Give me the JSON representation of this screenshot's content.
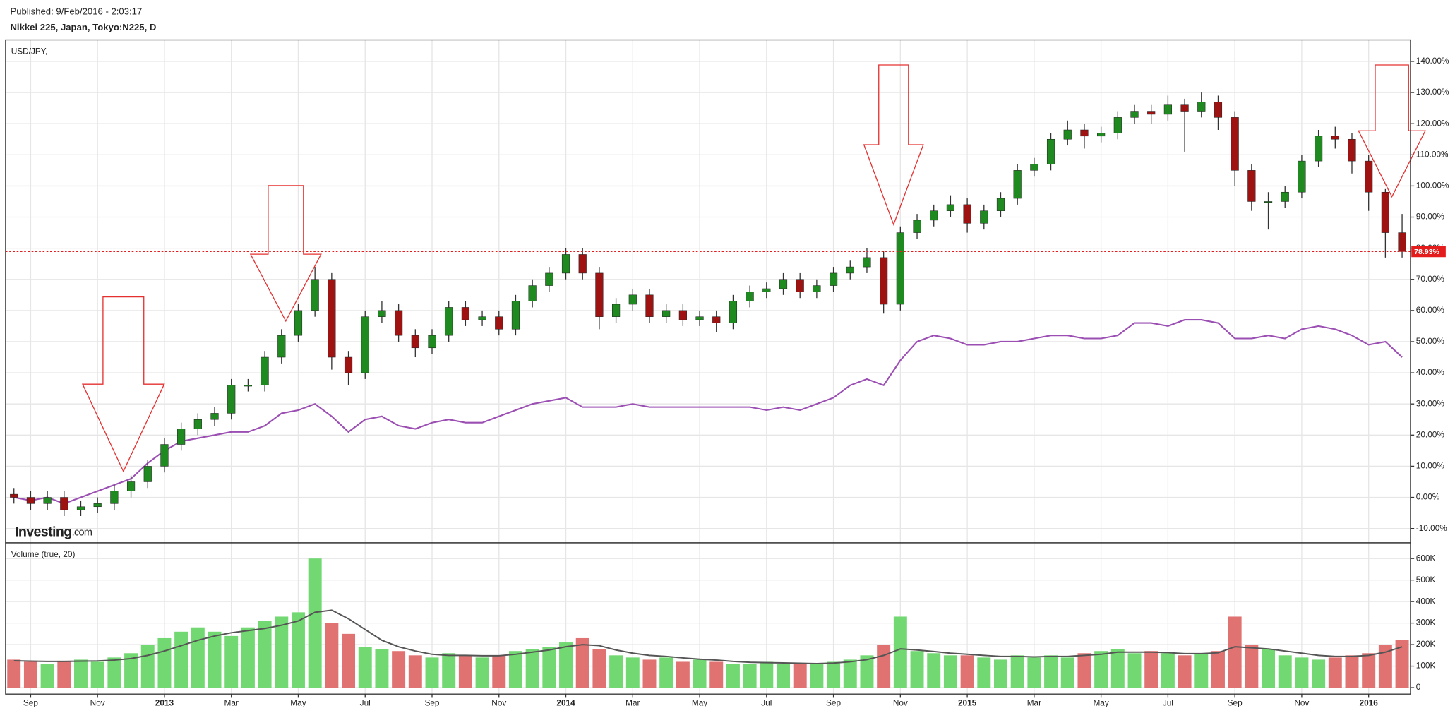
{
  "published": "Published: 9/Feb/2016 - 2:03:17",
  "instrument": "Nikkei 225, Japan, Tokyo:N225, D",
  "logo_main": "Investing",
  "logo_suffix": ".com",
  "chart_data": [
    {
      "type": "candlestick",
      "categories": [
        null,
        "Sep",
        null,
        null,
        null,
        "Nov",
        null,
        null,
        null,
        "2013",
        null,
        null,
        null,
        "Mar",
        null,
        null,
        null,
        "May",
        null,
        null,
        null,
        "Jul",
        null,
        null,
        null,
        "Sep",
        null,
        null,
        null,
        "Nov",
        null,
        null,
        null,
        "2014",
        null,
        null,
        null,
        "Mar",
        null,
        null,
        null,
        "May",
        null,
        null,
        null,
        "Jul",
        null,
        null,
        null,
        "Sep",
        null,
        null,
        null,
        "Nov",
        null,
        null,
        null,
        "2015",
        null,
        null,
        null,
        "Mar",
        null,
        null,
        null,
        "May",
        null,
        null,
        null,
        "Jul",
        null,
        null,
        null,
        "Sep",
        null,
        null,
        null,
        "Nov",
        null,
        null,
        null,
        "2016",
        null,
        null
      ],
      "open": [
        1,
        0,
        -2,
        0,
        -4,
        -3,
        -2,
        2,
        5,
        10,
        17,
        22,
        25,
        27,
        36,
        36,
        45,
        52,
        60,
        70,
        45,
        40,
        58,
        60,
        52,
        48,
        52,
        61,
        57,
        58,
        54,
        63,
        68,
        72,
        78,
        72,
        58,
        62,
        65,
        58,
        60,
        57,
        58,
        56,
        63,
        66,
        67,
        70,
        66,
        68,
        72,
        74,
        77,
        62,
        85,
        89,
        92,
        94,
        88,
        92,
        96,
        105,
        107,
        115,
        118,
        116,
        117,
        122,
        124,
        123,
        126,
        124,
        127,
        122,
        105,
        95,
        95,
        98,
        108,
        116,
        115,
        108,
        98,
        85
      ],
      "high": [
        3,
        2,
        2,
        2,
        -1,
        0,
        4,
        7,
        12,
        19,
        24,
        27,
        29,
        38,
        38,
        47,
        54,
        62,
        74,
        72,
        47,
        60,
        63,
        62,
        54,
        54,
        63,
        63,
        60,
        60,
        65,
        70,
        74,
        80,
        80,
        74,
        64,
        67,
        67,
        62,
        62,
        60,
        60,
        65,
        68,
        69,
        72,
        72,
        70,
        74,
        76,
        80,
        79,
        87,
        91,
        94,
        97,
        96,
        94,
        98,
        107,
        109,
        117,
        121,
        120,
        119,
        124,
        126,
        126,
        129,
        128,
        130,
        129,
        124,
        107,
        98,
        100,
        110,
        118,
        119,
        117,
        110,
        99,
        91
      ],
      "low": [
        -2,
        -4,
        -4,
        -6,
        -6,
        -5,
        -4,
        0,
        3,
        8,
        15,
        20,
        23,
        25,
        34,
        34,
        43,
        50,
        58,
        41,
        36,
        38,
        56,
        50,
        45,
        46,
        50,
        55,
        55,
        52,
        52,
        61,
        66,
        70,
        70,
        54,
        56,
        60,
        56,
        56,
        55,
        55,
        53,
        54,
        61,
        64,
        65,
        64,
        64,
        66,
        70,
        72,
        59,
        60,
        83,
        87,
        90,
        85,
        86,
        90,
        94,
        103,
        105,
        113,
        112,
        114,
        115,
        120,
        120,
        121,
        111,
        122,
        118,
        100,
        92,
        86,
        93,
        96,
        106,
        112,
        104,
        92,
        77,
        77
      ],
      "close": [
        0,
        -2,
        0,
        -4,
        -3,
        -2,
        2,
        5,
        10,
        17,
        22,
        25,
        27,
        36,
        36,
        45,
        52,
        60,
        70,
        45,
        40,
        58,
        60,
        52,
        48,
        52,
        61,
        57,
        58,
        54,
        63,
        68,
        72,
        78,
        72,
        58,
        62,
        65,
        58,
        60,
        57,
        58,
        56,
        63,
        66,
        67,
        70,
        66,
        68,
        72,
        74,
        77,
        62,
        85,
        89,
        92,
        94,
        88,
        92,
        96,
        105,
        107,
        115,
        118,
        116,
        117,
        122,
        124,
        123,
        126,
        124,
        127,
        122,
        105,
        95,
        95,
        98,
        108,
        116,
        115,
        108,
        98,
        85,
        78.93
      ],
      "up_color": "#1f8a1f",
      "down_color": "#9e1212",
      "wick_color": "#333",
      "last_label": "78.93%",
      "last_color": "#e51c1c",
      "series": [
        {
          "name": "USD/JPY,",
          "type": "line",
          "color": "#9b4fb3",
          "values": [
            0,
            -1,
            0,
            -2,
            0,
            2,
            4,
            6,
            11,
            15,
            18,
            19,
            20,
            21,
            21,
            23,
            27,
            28,
            30,
            26,
            21,
            25,
            26,
            23,
            22,
            24,
            25,
            24,
            24,
            26,
            28,
            30,
            31,
            32,
            29,
            29,
            29,
            30,
            29,
            29,
            29,
            29,
            29,
            29,
            29,
            28,
            29,
            28,
            30,
            32,
            36,
            38,
            36,
            44,
            50,
            52,
            51,
            49,
            49,
            50,
            50,
            51,
            52,
            52,
            51,
            51,
            52,
            56,
            56,
            55,
            57,
            57,
            56,
            51,
            51,
            52,
            51,
            54,
            55,
            54,
            52,
            49,
            50,
            45
          ]
        }
      ],
      "ylim": [
        -14.6,
        146.9
      ],
      "yticks": [
        {
          "value": -10,
          "label": "-10.00%"
        },
        {
          "value": 0,
          "label": "0.00%"
        },
        {
          "value": 10,
          "label": "10.00%"
        },
        {
          "value": 20,
          "label": "20.00%"
        },
        {
          "value": 30,
          "label": "30.00%"
        },
        {
          "value": 40,
          "label": "40.00%"
        },
        {
          "value": 50,
          "label": "50.00%"
        },
        {
          "value": 60,
          "label": "60.00%"
        },
        {
          "value": 70,
          "label": "70.00%"
        },
        {
          "value": 80,
          "label": "80.00%"
        },
        {
          "value": 90,
          "label": "90.00%"
        },
        {
          "value": 100,
          "label": "100.00%"
        },
        {
          "value": 110,
          "label": "110.00%"
        },
        {
          "value": 120,
          "label": "120.00%"
        },
        {
          "value": 130,
          "label": "130.00%"
        },
        {
          "value": 140,
          "label": "140.00%"
        }
      ],
      "grid": true
    },
    {
      "type": "bar",
      "title": "Volume (true, 20)",
      "values": [
        130000,
        120000,
        110000,
        125000,
        130000,
        120000,
        140000,
        160000,
        200000,
        230000,
        260000,
        280000,
        260000,
        240000,
        280000,
        310000,
        330000,
        350000,
        600000,
        300000,
        250000,
        190000,
        180000,
        170000,
        150000,
        140000,
        160000,
        150000,
        140000,
        150000,
        170000,
        180000,
        190000,
        210000,
        230000,
        180000,
        150000,
        140000,
        130000,
        140000,
        120000,
        130000,
        120000,
        110000,
        110000,
        120000,
        110000,
        110000,
        110000,
        120000,
        130000,
        150000,
        200000,
        330000,
        170000,
        160000,
        150000,
        150000,
        140000,
        130000,
        150000,
        140000,
        150000,
        140000,
        160000,
        170000,
        180000,
        160000,
        170000,
        160000,
        150000,
        160000,
        170000,
        330000,
        200000,
        180000,
        150000,
        140000,
        130000,
        140000,
        150000,
        160000,
        200000,
        220000
      ],
      "up_color": "#72d872",
      "down_color": "#e07272",
      "series": [
        {
          "type": "line",
          "color": "#555555",
          "values": [
            125000,
            123000,
            122000,
            122000,
            123000,
            124000,
            128000,
            135000,
            150000,
            170000,
            195000,
            220000,
            240000,
            255000,
            265000,
            275000,
            290000,
            310000,
            350000,
            360000,
            320000,
            270000,
            220000,
            190000,
            170000,
            155000,
            150000,
            150000,
            148000,
            148000,
            155000,
            165000,
            175000,
            190000,
            200000,
            195000,
            175000,
            160000,
            150000,
            145000,
            138000,
            132000,
            128000,
            122000,
            118000,
            116000,
            115000,
            113000,
            112000,
            114000,
            120000,
            130000,
            150000,
            180000,
            175000,
            168000,
            160000,
            155000,
            150000,
            145000,
            145000,
            143000,
            145000,
            145000,
            150000,
            155000,
            165000,
            165000,
            165000,
            163000,
            158000,
            158000,
            162000,
            190000,
            185000,
            180000,
            170000,
            160000,
            150000,
            145000,
            145000,
            150000,
            165000,
            190000
          ]
        }
      ],
      "ylim": [
        -30000,
        673000
      ],
      "yticks": [
        0,
        {
          "value": 100000,
          "label": "100K"
        },
        {
          "value": 200000,
          "label": "200K"
        },
        {
          "value": 300000,
          "label": "300K"
        },
        {
          "value": 400000,
          "label": "400K"
        },
        {
          "value": 500000,
          "label": "500K"
        },
        {
          "value": 600000,
          "label": "600K"
        }
      ],
      "grid": true
    }
  ]
}
